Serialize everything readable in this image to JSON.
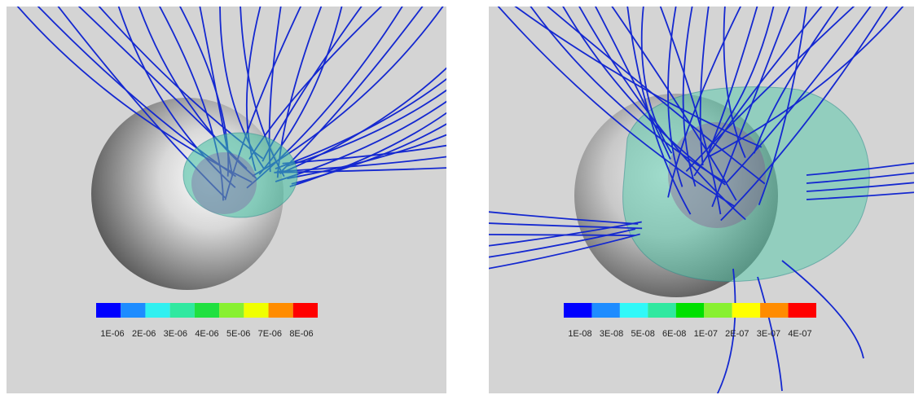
{
  "panels": [
    {
      "colorbar": {
        "colors": [
          "#0000ff",
          "#1e8cff",
          "#30f0f0",
          "#30e8a0",
          "#20e040",
          "#88f030",
          "#f0ff00",
          "#ff8c00",
          "#ff0000"
        ],
        "labels": [
          "1E-06",
          "2E-06",
          "3E-06",
          "4E-06",
          "5E-06",
          "7E-06",
          "8E-06"
        ]
      }
    },
    {
      "colorbar": {
        "colors": [
          "#0000ff",
          "#1e8cff",
          "#30f8f8",
          "#30e8a0",
          "#00e000",
          "#88f030",
          "#ffff00",
          "#ff8c00",
          "#ff0000"
        ],
        "labels": [
          "1E-08",
          "3E-08",
          "5E-08",
          "6E-08",
          "1E-07",
          "2E-07",
          "3E-07",
          "4E-07"
        ]
      }
    }
  ]
}
